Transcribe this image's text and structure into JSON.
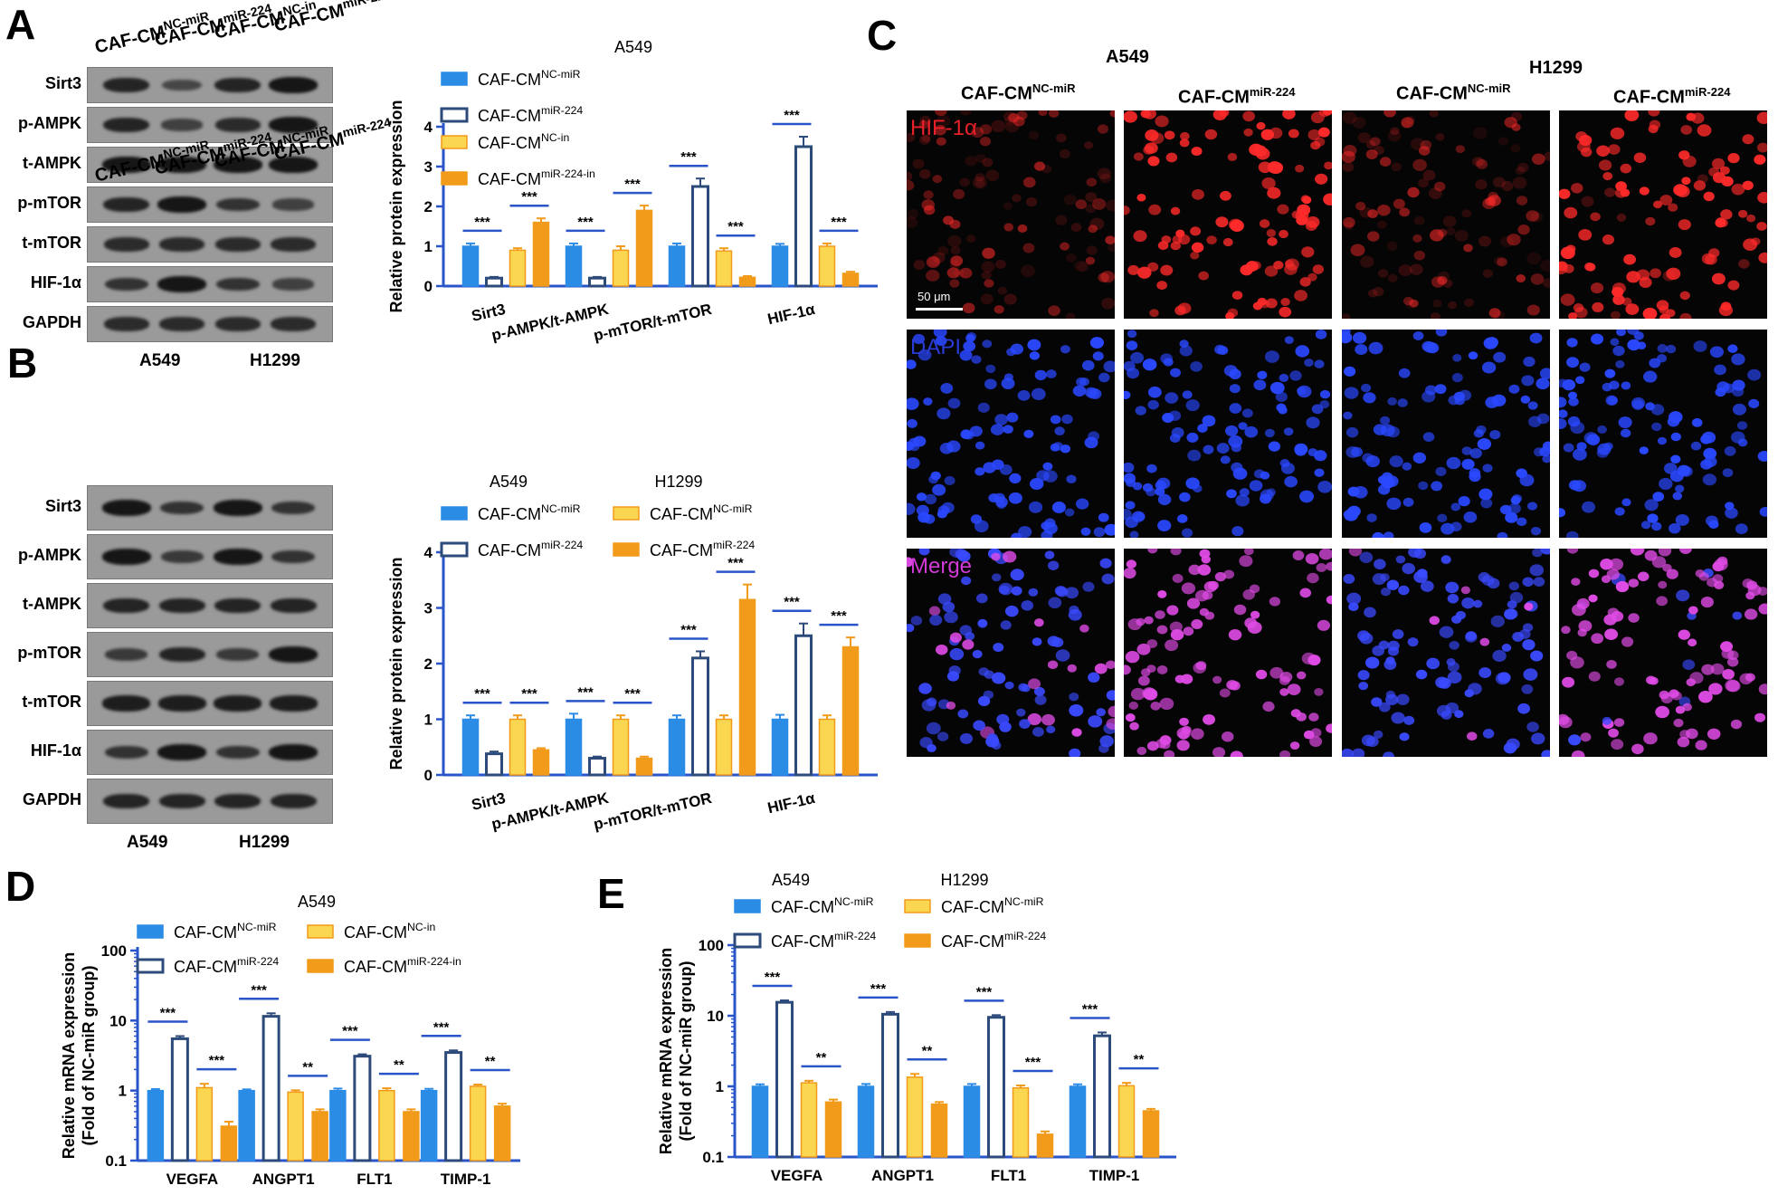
{
  "panels": {
    "A": "A",
    "B": "B",
    "C": "C",
    "D": "D",
    "E": "E"
  },
  "blots": {
    "A": {
      "lanes": [
        {
          "base": "CAF-CM",
          "sup": "NC-miR"
        },
        {
          "base": "CAF-CM",
          "sup": "miR-224"
        },
        {
          "base": "CAF-CM",
          "sup": "NC-in"
        },
        {
          "base": "CAF-CM",
          "sup": "miR-224-in"
        }
      ],
      "rows": [
        "Sirt3",
        "p-AMPK",
        "t-AMPK",
        "p-mTOR",
        "t-mTOR",
        "HIF-1α",
        "GAPDH"
      ],
      "cells": [
        "A549",
        "H1299"
      ]
    },
    "B": {
      "lanes": [
        {
          "base": "CAF-CM",
          "sup": "NC-miR"
        },
        {
          "base": "CAF-CM",
          "sup": "miR-224"
        },
        {
          "base": "CAF-CM",
          "sup": "NC-miR"
        },
        {
          "base": "CAF-CM",
          "sup": "miR-224"
        }
      ],
      "rows": [
        "Sirt3",
        "p-AMPK",
        "t-AMPK",
        "p-mTOR",
        "t-mTOR",
        "HIF-1α",
        "GAPDH"
      ],
      "cells": [
        "A549",
        "H1299"
      ]
    }
  },
  "microscopy": {
    "cell_lines": [
      "A549",
      "H1299"
    ],
    "columns": [
      {
        "base": "CAF-CM",
        "sup": "NC-miR"
      },
      {
        "base": "CAF-CM",
        "sup": "miR-224"
      },
      {
        "base": "CAF-CM",
        "sup": "NC-miR"
      },
      {
        "base": "CAF-CM",
        "sup": "miR-224"
      }
    ],
    "rows": [
      {
        "label": "HIF-1α",
        "color": "#e8202a"
      },
      {
        "label": "DAPI",
        "color": "#2a3bd6"
      },
      {
        "label": "Merge",
        "color": "#d23ad8"
      }
    ],
    "scale_bar": "50 μm"
  },
  "colors": {
    "blue": "#2b8ce6",
    "navy": "#2c4a7a",
    "yellow": "#fbd650",
    "orange": "#f29a1a",
    "axis": "#2a55c8",
    "sig": "#2a55c8"
  },
  "chart_data": [
    {
      "panel": "A",
      "type": "bar",
      "title": "A549",
      "ylabel": "Relative protein expression",
      "ylim": [
        0,
        4
      ],
      "yticks": [
        0,
        1,
        2,
        3,
        4
      ],
      "categories": [
        "Sirt3",
        "p-AMPK/t-AMPK",
        "p-mTOR/t-mTOR",
        "HIF-1α"
      ],
      "legend_layout": "single-column",
      "series": [
        {
          "name": "CAF-CM",
          "sup": "NC-miR",
          "style": "blue",
          "values": [
            1.0,
            1.0,
            1.0,
            1.0
          ],
          "err": [
            0.07,
            0.07,
            0.07,
            0.06
          ]
        },
        {
          "name": "CAF-CM",
          "sup": "miR-224",
          "style": "open",
          "values": [
            0.2,
            0.2,
            2.5,
            3.5
          ],
          "err": [
            0.03,
            0.03,
            0.2,
            0.25
          ]
        },
        {
          "name": "CAF-CM",
          "sup": "NC-in",
          "style": "yellow",
          "values": [
            0.9,
            0.9,
            0.88,
            1.0
          ],
          "err": [
            0.05,
            0.1,
            0.07,
            0.07
          ]
        },
        {
          "name": "CAF-CM",
          "sup": "miR-224-in",
          "style": "orange",
          "values": [
            1.6,
            1.9,
            0.22,
            0.32
          ],
          "err": [
            0.1,
            0.12,
            0.03,
            0.04
          ]
        }
      ],
      "significance": [
        {
          "cat": 0,
          "pair": [
            0,
            1
          ],
          "label": "***"
        },
        {
          "cat": 0,
          "pair": [
            2,
            3
          ],
          "label": "***"
        },
        {
          "cat": 1,
          "pair": [
            0,
            1
          ],
          "label": "***"
        },
        {
          "cat": 1,
          "pair": [
            2,
            3
          ],
          "label": "***"
        },
        {
          "cat": 2,
          "pair": [
            0,
            1
          ],
          "label": "***"
        },
        {
          "cat": 2,
          "pair": [
            2,
            3
          ],
          "label": "***"
        },
        {
          "cat": 3,
          "pair": [
            0,
            1
          ],
          "label": "***"
        },
        {
          "cat": 3,
          "pair": [
            2,
            3
          ],
          "label": "***"
        }
      ]
    },
    {
      "panel": "B",
      "type": "bar",
      "groups": [
        "A549",
        "H1299"
      ],
      "ylabel": "Relative protein expression",
      "ylim": [
        0,
        4
      ],
      "yticks": [
        0,
        1,
        2,
        3,
        4
      ],
      "categories": [
        "Sirt3",
        "p-AMPK/t-AMPK",
        "p-mTOR/t-mTOR",
        "HIF-1α"
      ],
      "legend_layout": "two-column",
      "series": [
        {
          "name": "CAF-CM",
          "sup": "NC-miR",
          "style": "blue",
          "values": [
            1.0,
            1.0,
            1.0,
            1.0
          ],
          "err": [
            0.07,
            0.1,
            0.07,
            0.08
          ]
        },
        {
          "name": "CAF-CM",
          "sup": "miR-224",
          "style": "open",
          "values": [
            0.38,
            0.3,
            2.1,
            2.5
          ],
          "err": [
            0.04,
            0.03,
            0.12,
            0.22
          ]
        },
        {
          "name": "CAF-CM",
          "sup": "NC-miR",
          "style": "yellow",
          "values": [
            1.0,
            1.0,
            1.0,
            1.0
          ],
          "err": [
            0.07,
            0.07,
            0.07,
            0.07
          ]
        },
        {
          "name": "CAF-CM",
          "sup": "miR-224",
          "style": "orange",
          "values": [
            0.45,
            0.3,
            3.15,
            2.3
          ],
          "err": [
            0.03,
            0.03,
            0.27,
            0.17
          ]
        }
      ],
      "significance": [
        {
          "cat": 0,
          "pair": [
            0,
            1
          ],
          "label": "***"
        },
        {
          "cat": 0,
          "pair": [
            2,
            3
          ],
          "label": "***"
        },
        {
          "cat": 1,
          "pair": [
            0,
            1
          ],
          "label": "***"
        },
        {
          "cat": 1,
          "pair": [
            2,
            3
          ],
          "label": "***"
        },
        {
          "cat": 2,
          "pair": [
            0,
            1
          ],
          "label": "***"
        },
        {
          "cat": 2,
          "pair": [
            2,
            3
          ],
          "label": "***"
        },
        {
          "cat": 3,
          "pair": [
            0,
            1
          ],
          "label": "***"
        },
        {
          "cat": 3,
          "pair": [
            2,
            3
          ],
          "label": "***"
        }
      ]
    },
    {
      "panel": "D",
      "type": "bar",
      "scale": "log",
      "title": "A549",
      "ylabel": "Relative mRNA expression",
      "ylabel2": "(Fold of NC-miR group)",
      "ylim": [
        0.1,
        100
      ],
      "yticks": [
        0.1,
        1,
        10,
        100
      ],
      "ytick_labels": [
        "0.1",
        "1",
        "10",
        "100"
      ],
      "categories": [
        "VEGFA",
        "ANGPT1",
        "FLT1",
        "TIMP-1"
      ],
      "legend_layout": "two-column",
      "series": [
        {
          "name": "CAF-CM",
          "sup": "NC-miR",
          "style": "blue",
          "values": [
            1.0,
            1.0,
            1.0,
            1.0
          ],
          "err": [
            0.05,
            0.04,
            0.07,
            0.06
          ]
        },
        {
          "name": "CAF-CM",
          "sup": "miR-224",
          "style": "open",
          "values": [
            5.5,
            11.5,
            3.1,
            3.5
          ],
          "err": [
            0.5,
            1.2,
            0.2,
            0.25
          ]
        },
        {
          "name": "CAF-CM",
          "sup": "NC-in",
          "style": "yellow",
          "values": [
            1.1,
            0.95,
            1.0,
            1.15
          ],
          "err": [
            0.15,
            0.06,
            0.08,
            0.07
          ]
        },
        {
          "name": "CAF-CM",
          "sup": "miR-224-in",
          "style": "orange",
          "values": [
            0.31,
            0.5,
            0.5,
            0.6
          ],
          "err": [
            0.05,
            0.04,
            0.04,
            0.05
          ]
        }
      ],
      "significance": [
        {
          "cat": 0,
          "pair": [
            0,
            1
          ],
          "label": "***"
        },
        {
          "cat": 0,
          "pair": [
            2,
            3
          ],
          "label": "***"
        },
        {
          "cat": 1,
          "pair": [
            0,
            1
          ],
          "label": "***"
        },
        {
          "cat": 1,
          "pair": [
            2,
            3
          ],
          "label": "**"
        },
        {
          "cat": 2,
          "pair": [
            0,
            1
          ],
          "label": "***"
        },
        {
          "cat": 2,
          "pair": [
            2,
            3
          ],
          "label": "**"
        },
        {
          "cat": 3,
          "pair": [
            0,
            1
          ],
          "label": "***"
        },
        {
          "cat": 3,
          "pair": [
            2,
            3
          ],
          "label": "**"
        }
      ]
    },
    {
      "panel": "E",
      "type": "bar",
      "scale": "log",
      "groups": [
        "A549",
        "H1299"
      ],
      "ylabel": "Relative mRNA expression",
      "ylabel2": "(Fold of NC-miR group)",
      "ylim": [
        0.1,
        100
      ],
      "yticks": [
        0.1,
        1,
        10,
        100
      ],
      "ytick_labels": [
        "0.1",
        "1",
        "10",
        "100"
      ],
      "categories": [
        "VEGFA",
        "ANGPT1",
        "FLT1",
        "TIMP-1"
      ],
      "legend_layout": "two-column",
      "series": [
        {
          "name": "CAF-CM",
          "sup": "NC-miR",
          "style": "blue",
          "values": [
            1.0,
            1.0,
            1.0,
            1.0
          ],
          "err": [
            0.07,
            0.08,
            0.08,
            0.07
          ]
        },
        {
          "name": "CAF-CM",
          "sup": "miR-224",
          "style": "open",
          "values": [
            15.5,
            10.5,
            9.5,
            5.2
          ],
          "err": [
            1.0,
            0.8,
            0.7,
            0.6
          ]
        },
        {
          "name": "CAF-CM",
          "sup": "NC-miR",
          "style": "yellow",
          "values": [
            1.12,
            1.35,
            0.95,
            1.02
          ],
          "err": [
            0.08,
            0.15,
            0.08,
            0.1
          ]
        },
        {
          "name": "CAF-CM",
          "sup": "miR-224",
          "style": "orange",
          "values": [
            0.6,
            0.56,
            0.21,
            0.45
          ],
          "err": [
            0.05,
            0.04,
            0.02,
            0.03
          ]
        }
      ],
      "significance": [
        {
          "cat": 0,
          "pair": [
            0,
            1
          ],
          "label": "***"
        },
        {
          "cat": 0,
          "pair": [
            2,
            3
          ],
          "label": "**"
        },
        {
          "cat": 1,
          "pair": [
            0,
            1
          ],
          "label": "***"
        },
        {
          "cat": 1,
          "pair": [
            2,
            3
          ],
          "label": "**"
        },
        {
          "cat": 2,
          "pair": [
            0,
            1
          ],
          "label": "***"
        },
        {
          "cat": 2,
          "pair": [
            2,
            3
          ],
          "label": "***"
        },
        {
          "cat": 3,
          "pair": [
            0,
            1
          ],
          "label": "***"
        },
        {
          "cat": 3,
          "pair": [
            2,
            3
          ],
          "label": "**"
        }
      ]
    }
  ]
}
